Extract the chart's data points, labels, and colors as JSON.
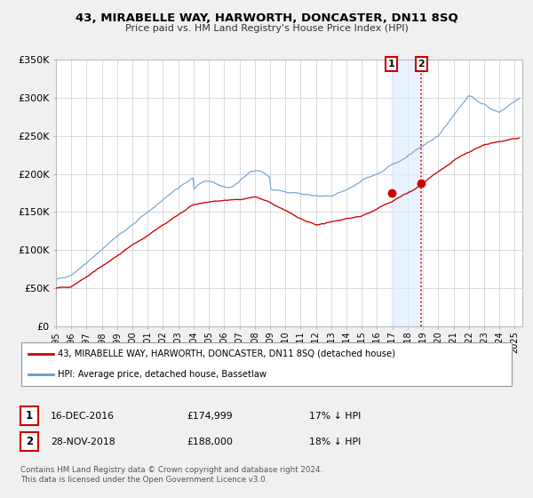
{
  "title": "43, MIRABELLE WAY, HARWORTH, DONCASTER, DN11 8SQ",
  "subtitle": "Price paid vs. HM Land Registry's House Price Index (HPI)",
  "ylim": [
    0,
    350000
  ],
  "yticks": [
    0,
    50000,
    100000,
    150000,
    200000,
    250000,
    300000,
    350000
  ],
  "ytick_labels": [
    "£0",
    "£50K",
    "£100K",
    "£150K",
    "£200K",
    "£250K",
    "£300K",
    "£350K"
  ],
  "xlim_lo": 1995,
  "xlim_hi": 2025.5,
  "red_color": "#cc0000",
  "blue_color": "#6699cc",
  "sale1_year": 2016.95,
  "sale1_price": 174999,
  "sale2_year": 2018.9,
  "sale2_price": 188000,
  "sale1_date": "16-DEC-2016",
  "sale1_price_str": "£174,999",
  "sale1_hpi": "17% ↓ HPI",
  "sale2_date": "28-NOV-2018",
  "sale2_price_str": "£188,000",
  "sale2_hpi": "18% ↓ HPI",
  "legend_label_red": "43, MIRABELLE WAY, HARWORTH, DONCASTER, DN11 8SQ (detached house)",
  "legend_label_blue": "HPI: Average price, detached house, Bassetlaw",
  "footer": "Contains HM Land Registry data © Crown copyright and database right 2024.\nThis data is licensed under the Open Government Licence v3.0.",
  "bg_color": "#f0f0f0",
  "plot_bg": "#ffffff",
  "grid_color": "#cccccc",
  "span_color": "#ddeeff",
  "span_alpha": 0.65
}
